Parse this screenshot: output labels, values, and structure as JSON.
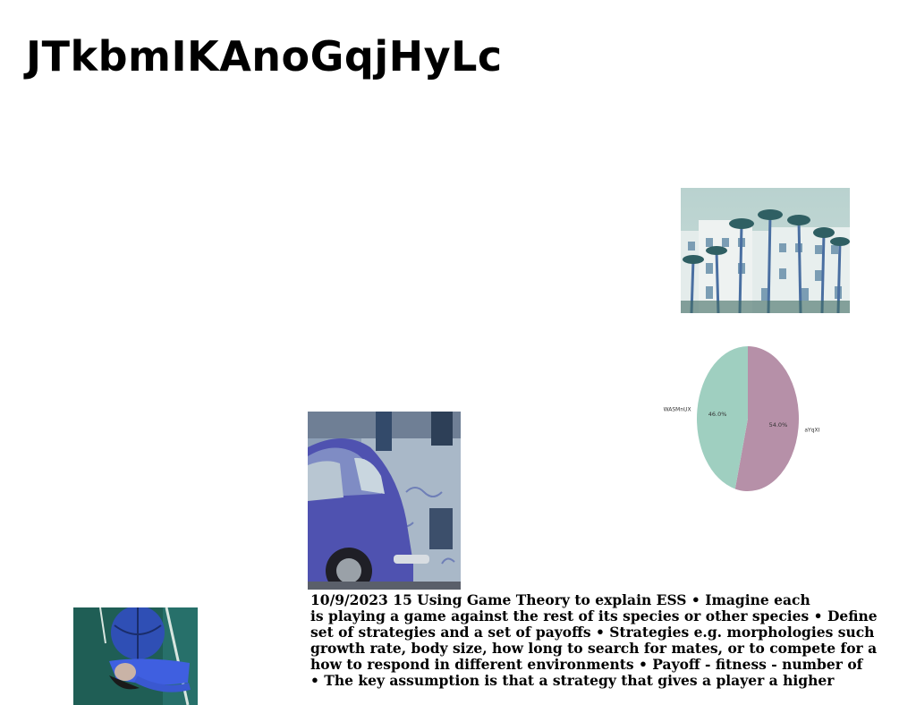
{
  "page": {
    "title": "JTkbmIKAnoGqjHyLc"
  },
  "images": {
    "palms": "palm-trees-building-photo",
    "car": "blue-vintage-car-photo",
    "ball": "person-with-ball-photo"
  },
  "chart_data": {
    "type": "pie",
    "title": "",
    "labels": [
      "WASMnUX",
      "aYqXI"
    ],
    "values": [
      46.0,
      54.0
    ],
    "value_labels": [
      "46.0%",
      "54.0%"
    ],
    "colors": [
      "#9fcfc0",
      "#b690a8"
    ],
    "start_angle_deg": 90,
    "direction": "clockwise-from-top for aYqXI"
  },
  "text": {
    "lines": [
      "10/9/2023 15 Using Game Theory to explain ESS • Imagine each",
      "is playing a game against the rest of its species or other species • Define",
      "set of strategies and a set of payoffs • Strategies e.g. morphologies such",
      "growth rate, body size, how long to search for mates, or to compete for a",
      "how to respond in different environments • Payoff - fitness - number of",
      "• The key assumption is that a strategy that gives a player a higher"
    ]
  }
}
